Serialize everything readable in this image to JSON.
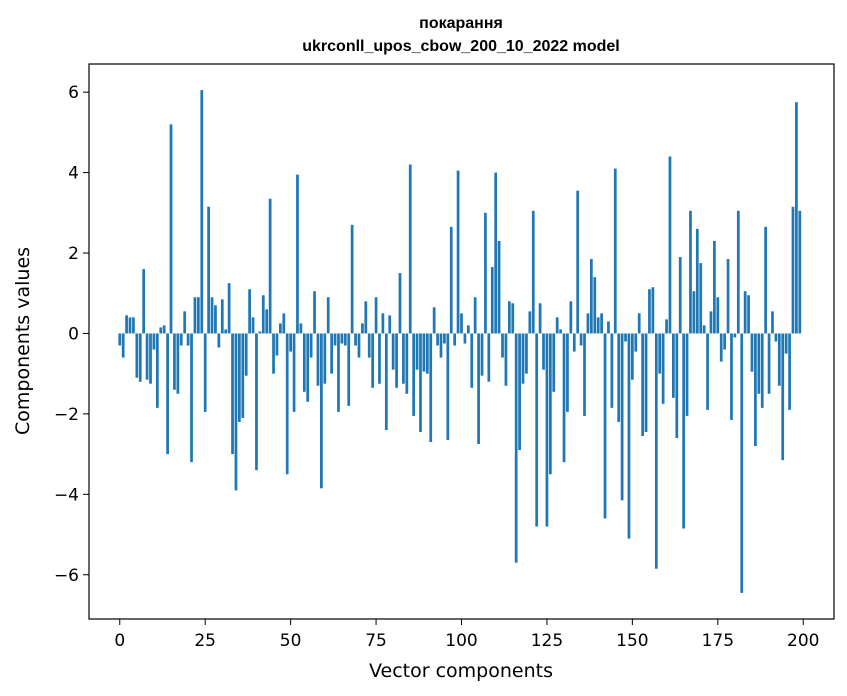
{
  "chart_data": {
    "type": "bar",
    "title": "покарання",
    "subtitle": "ukrconll_upos_cbow_200_10_2022 model",
    "xlabel": "Vector components",
    "ylabel": "Components values",
    "xlim": [
      -9,
      209
    ],
    "ylim": [
      -7.1,
      6.7
    ],
    "xticks": [
      0,
      25,
      50,
      75,
      100,
      125,
      150,
      175,
      200
    ],
    "yticks": [
      -6,
      -4,
      -2,
      0,
      2,
      4,
      6
    ],
    "grid": false,
    "legend": "none",
    "bar_color": "#1f77b4",
    "x": [
      0,
      1,
      2,
      3,
      4,
      5,
      6,
      7,
      8,
      9,
      10,
      11,
      12,
      13,
      14,
      15,
      16,
      17,
      18,
      19,
      20,
      21,
      22,
      23,
      24,
      25,
      26,
      27,
      28,
      29,
      30,
      31,
      32,
      33,
      34,
      35,
      36,
      37,
      38,
      39,
      40,
      41,
      42,
      43,
      44,
      45,
      46,
      47,
      48,
      49,
      50,
      51,
      52,
      53,
      54,
      55,
      56,
      57,
      58,
      59,
      60,
      61,
      62,
      63,
      64,
      65,
      66,
      67,
      68,
      69,
      70,
      71,
      72,
      73,
      74,
      75,
      76,
      77,
      78,
      79,
      80,
      81,
      82,
      83,
      84,
      85,
      86,
      87,
      88,
      89,
      90,
      91,
      92,
      93,
      94,
      95,
      96,
      97,
      98,
      99,
      100,
      101,
      102,
      103,
      104,
      105,
      106,
      107,
      108,
      109,
      110,
      111,
      112,
      113,
      114,
      115,
      116,
      117,
      118,
      119,
      120,
      121,
      122,
      123,
      124,
      125,
      126,
      127,
      128,
      129,
      130,
      131,
      132,
      133,
      134,
      135,
      136,
      137,
      138,
      139,
      140,
      141,
      142,
      143,
      144,
      145,
      146,
      147,
      148,
      149,
      150,
      151,
      152,
      153,
      154,
      155,
      156,
      157,
      158,
      159,
      160,
      161,
      162,
      163,
      164,
      165,
      166,
      167,
      168,
      169,
      170,
      171,
      172,
      173,
      174,
      175,
      176,
      177,
      178,
      179,
      180,
      181,
      182,
      183,
      184,
      185,
      186,
      187,
      188,
      189,
      190,
      191,
      192,
      193,
      194,
      195,
      196,
      197,
      198,
      199
    ],
    "values": [
      -0.3,
      -0.6,
      0.45,
      0.4,
      0.4,
      -1.1,
      -1.2,
      1.6,
      -1.15,
      -1.25,
      -0.4,
      -1.85,
      0.15,
      0.2,
      -3.0,
      5.2,
      -1.4,
      -1.5,
      -0.3,
      0.55,
      -0.3,
      -3.2,
      0.9,
      0.9,
      6.05,
      -1.95,
      3.15,
      0.9,
      0.7,
      -0.35,
      0.85,
      0.1,
      1.25,
      -3.0,
      -3.9,
      -2.2,
      -2.1,
      -1.05,
      1.1,
      0.4,
      -3.4,
      0.05,
      0.95,
      0.6,
      3.35,
      -1.0,
      -0.55,
      0.25,
      0.5,
      -3.5,
      -0.45,
      -1.95,
      3.95,
      0.25,
      -1.45,
      -1.7,
      -0.6,
      1.05,
      -1.3,
      -3.85,
      -1.25,
      0.9,
      -1.0,
      -0.3,
      -1.95,
      -0.25,
      -0.3,
      -1.8,
      2.7,
      -0.3,
      -0.6,
      0.25,
      0.8,
      -0.6,
      -1.35,
      0.9,
      -1.25,
      0.5,
      -2.4,
      0.45,
      -0.9,
      -1.35,
      1.5,
      -1.25,
      -1.5,
      4.2,
      -2.05,
      -0.9,
      -2.45,
      -0.95,
      -1.0,
      -2.7,
      0.65,
      -0.3,
      -0.6,
      -0.25,
      -2.65,
      2.65,
      -0.3,
      4.05,
      0.5,
      -0.25,
      0.2,
      -1.35,
      0.9,
      -2.75,
      -1.05,
      3.0,
      -1.2,
      1.65,
      4.0,
      2.3,
      -0.6,
      -1.3,
      0.8,
      0.75,
      -5.7,
      -2.9,
      -1.25,
      -1.0,
      0.55,
      3.05,
      -4.8,
      0.75,
      -0.9,
      -4.8,
      -3.5,
      -1.45,
      0.4,
      0.1,
      -3.2,
      -1.95,
      0.8,
      -0.45,
      3.55,
      -0.3,
      -2.05,
      0.5,
      1.85,
      1.4,
      0.4,
      0.5,
      -4.6,
      0.3,
      -1.85,
      4.1,
      -2.2,
      -4.15,
      -0.2,
      -5.1,
      -1.15,
      -0.45,
      0.5,
      -2.55,
      -2.45,
      1.1,
      1.15,
      -5.85,
      -1.0,
      -1.75,
      0.35,
      4.4,
      -1.6,
      -2.6,
      1.9,
      -4.85,
      -2.05,
      3.05,
      1.05,
      2.6,
      1.75,
      0.2,
      -1.9,
      0.55,
      2.3,
      0.9,
      -0.7,
      -0.4,
      1.85,
      -2.15,
      -0.1,
      3.05,
      -6.45,
      1.05,
      0.95,
      -0.95,
      -2.8,
      -1.5,
      -1.85,
      2.65,
      -1.5,
      0.55,
      -0.2,
      -1.3,
      -3.15,
      -0.5,
      -1.9,
      3.15,
      5.75,
      3.05
    ]
  }
}
